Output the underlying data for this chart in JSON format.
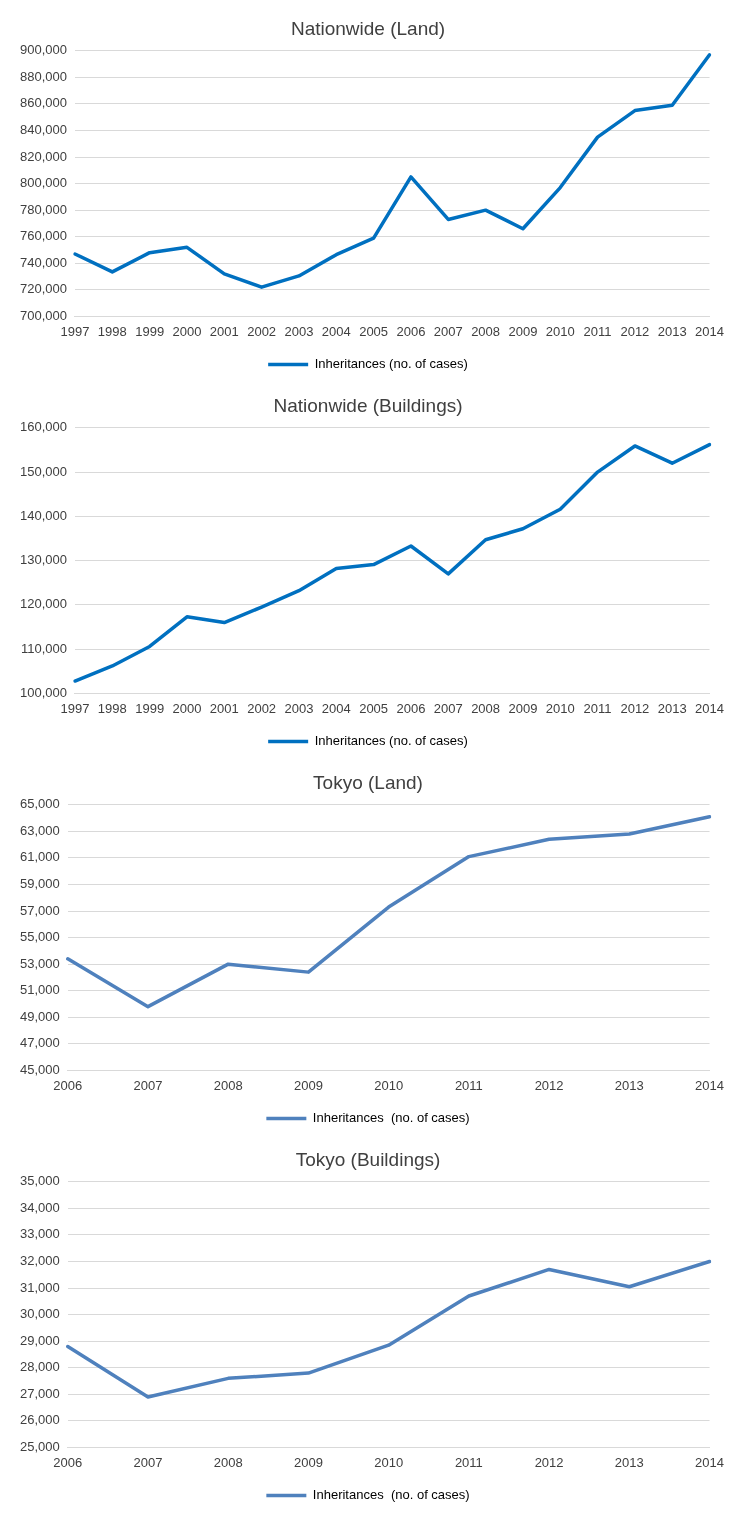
{
  "chart_data": [
    {
      "type": "line",
      "title": "Nationwide (Land)",
      "categories": [
        "1997",
        "1998",
        "1999",
        "2000",
        "2001",
        "2002",
        "2003",
        "2004",
        "2005",
        "2006",
        "2007",
        "2008",
        "2009",
        "2010",
        "2011",
        "2012",
        "2013",
        "2014"
      ],
      "series": [
        {
          "name": "Inheritances (no. of cases)",
          "color": "#0070c0",
          "values": [
            747000,
            733500,
            748000,
            752000,
            732000,
            722000,
            730500,
            746500,
            759000,
            805000,
            773000,
            780000,
            766000,
            797000,
            835000,
            855000,
            859000,
            897000
          ]
        }
      ],
      "ylim": [
        700000,
        900000
      ],
      "yticks": [
        {
          "value": 700000,
          "label": "700,000"
        },
        {
          "value": 720000,
          "label": "720,000"
        },
        {
          "value": 740000,
          "label": "740,000"
        },
        {
          "value": 760000,
          "label": "760,000"
        },
        {
          "value": 780000,
          "label": "780,000"
        },
        {
          "value": 800000,
          "label": "800,000"
        },
        {
          "value": 820000,
          "label": "820,000"
        },
        {
          "value": 840000,
          "label": "840,000"
        },
        {
          "value": 860000,
          "label": "860,000"
        },
        {
          "value": 880000,
          "label": "880,000"
        },
        {
          "value": 900000,
          "label": "900,000"
        }
      ],
      "grid": "y",
      "legend": "bottom",
      "marker": "none",
      "line_style": "solid"
    },
    {
      "type": "line",
      "title": "Nationwide (Buildings)",
      "categories": [
        "1997",
        "1998",
        "1999",
        "2000",
        "2001",
        "2002",
        "2003",
        "2004",
        "2005",
        "2006",
        "2007",
        "2008",
        "2009",
        "2010",
        "2011",
        "2012",
        "2013",
        "2014"
      ],
      "series": [
        {
          "name": "Inheritances (no. of cases)",
          "color": "#0070c0",
          "values": [
            102800,
            106200,
            110600,
            117300,
            116000,
            119500,
            123200,
            128200,
            129100,
            133300,
            127000,
            134700,
            137200,
            141600,
            150000,
            155900,
            152000,
            156200
          ]
        }
      ],
      "ylim": [
        100000,
        160000
      ],
      "yticks": [
        {
          "value": 100000,
          "label": "100,000"
        },
        {
          "value": 110000,
          "label": "110,000"
        },
        {
          "value": 120000,
          "label": "120,000"
        },
        {
          "value": 130000,
          "label": "130,000"
        },
        {
          "value": 140000,
          "label": "140,000"
        },
        {
          "value": 150000,
          "label": "150,000"
        },
        {
          "value": 160000,
          "label": "160,000"
        }
      ],
      "grid": "y",
      "legend": "bottom",
      "marker": "none",
      "line_style": "solid"
    },
    {
      "type": "line",
      "title": "Tokyo (Land)",
      "categories": [
        "2006",
        "2007",
        "2008",
        "2009",
        "2010",
        "2011",
        "2012",
        "2013",
        "2014"
      ],
      "series": [
        {
          "name": "Inheritances  (no. of cases)",
          "color": "#4f81bd",
          "values": [
            53400,
            49800,
            53000,
            52400,
            57300,
            61100,
            62400,
            62800,
            64100
          ]
        }
      ],
      "ylim": [
        45000,
        65000
      ],
      "yticks": [
        {
          "value": 45000,
          "label": "45,000"
        },
        {
          "value": 47000,
          "label": "47,000"
        },
        {
          "value": 49000,
          "label": "49,000"
        },
        {
          "value": 51000,
          "label": "51,000"
        },
        {
          "value": 53000,
          "label": "53,000"
        },
        {
          "value": 55000,
          "label": "55,000"
        },
        {
          "value": 57000,
          "label": "57,000"
        },
        {
          "value": 59000,
          "label": "59,000"
        },
        {
          "value": 61000,
          "label": "61,000"
        },
        {
          "value": 63000,
          "label": "63,000"
        },
        {
          "value": 65000,
          "label": "65,000"
        }
      ],
      "grid": "y",
      "legend": "bottom",
      "marker": "none",
      "line_style": "solid"
    },
    {
      "type": "line",
      "title": "Tokyo (Buildings)",
      "categories": [
        "2006",
        "2007",
        "2008",
        "2009",
        "2010",
        "2011",
        "2012",
        "2013",
        "2014"
      ],
      "series": [
        {
          "name": "Inheritances  (no. of cases)",
          "color": "#4f81bd",
          "values": [
            28800,
            26900,
            27600,
            27800,
            28850,
            30700,
            31700,
            31050,
            32000
          ]
        }
      ],
      "ylim": [
        25000,
        35000
      ],
      "yticks": [
        {
          "value": 25000,
          "label": "25,000"
        },
        {
          "value": 26000,
          "label": "26,000"
        },
        {
          "value": 27000,
          "label": "27,000"
        },
        {
          "value": 28000,
          "label": "28,000"
        },
        {
          "value": 29000,
          "label": "29,000"
        },
        {
          "value": 30000,
          "label": "30,000"
        },
        {
          "value": 31000,
          "label": "31,000"
        },
        {
          "value": 32000,
          "label": "32,000"
        },
        {
          "value": 33000,
          "label": "33,000"
        },
        {
          "value": 34000,
          "label": "34,000"
        },
        {
          "value": 35000,
          "label": "35,000"
        }
      ],
      "grid": "y",
      "legend": "bottom",
      "marker": "none",
      "line_style": "solid"
    }
  ]
}
